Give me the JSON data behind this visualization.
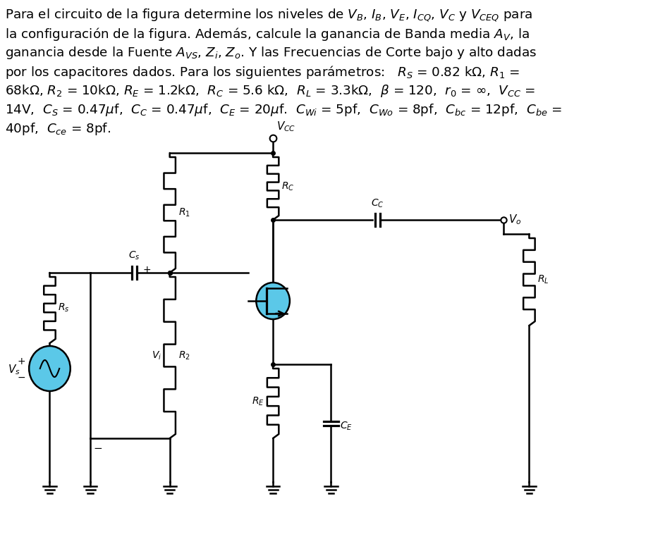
{
  "bg_color": "#ffffff",
  "text_color": "#000000",
  "circuit_color": "#000000",
  "transistor_circle_color": "#5bc8e8",
  "source_circle_color": "#5bc8e8",
  "fontsize_text": 13.2,
  "line1": "Para el circuito de la figura determine los niveles de $V_B$, $I_B$, $V_E$, $I_{CQ}$, $V_C$ y $V_{CEQ}$ para",
  "line2": "la configuración de la figura. Además, calcule la ganancia de Banda media $A_V$, la",
  "line3": "ganancia desde la Fuente $A_{VS}$, $Z_i$, $Z_o$. Y las Frecuencias de Corte bajo y alto dadas",
  "line4": "por los capacitores dados. Para los siguientes parámetros:   $R_S$ = 0.82 k$\\Omega$, $R_1$ =",
  "line5": "68k$\\Omega$, $R_2$ = 10k$\\Omega$, $R_E$ = 1.2k$\\Omega$,  $R_C$ = 5.6 k$\\Omega$,  $R_L$ = 3.3k$\\Omega$,  $\\beta$ = 120,  $r_0$ = $\\infty$,  $V_{CC}$ =",
  "line6": "14V,  $C_S$ = 0.47$\\mu$f,  $C_C$ = 0.47$\\mu$f,  $C_E$ = 20$\\mu$f.  $C_{Wi}$ = 5pf,  $C_{Wo}$ = 8pf,  $C_{bc}$ = 12pf,  $C_{be}$ =",
  "line7": "40pf,  $C_{ce}$ = 8pf."
}
